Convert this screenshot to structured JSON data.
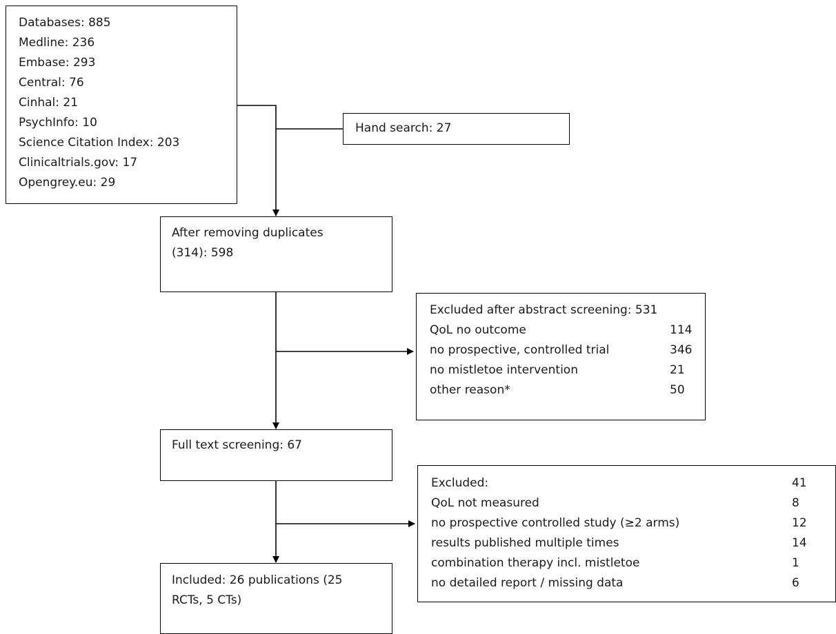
{
  "databases": {
    "lines": [
      "Databases: 885",
      "Medline: 236",
      "Embase: 293",
      "Central: 76",
      "Cinhal: 21",
      "PsychInfo: 10",
      "Science Citation Index: 203",
      "Clinicaltrials.gov: 17",
      "Opengrey.eu: 29"
    ]
  },
  "hand_search": {
    "label": "Hand search: 27"
  },
  "after_duplicates": {
    "line1": "After removing duplicates",
    "line2": "(314):  598"
  },
  "abstract_exclusion": {
    "title": "Excluded after abstract screening: 531",
    "rows": [
      {
        "reason": "QoL no outcome",
        "count": "114"
      },
      {
        "reason": "no prospective, controlled trial",
        "count": "346"
      },
      {
        "reason": "no mistletoe  intervention",
        "count": "21"
      },
      {
        "reason": "other reason*",
        "count": "50"
      }
    ]
  },
  "full_text": {
    "label": "Full text screening: 67"
  },
  "fulltext_exclusion": {
    "rows": [
      {
        "reason": "Excluded:",
        "count": "41"
      },
      {
        "reason": "QoL not measured",
        "count": "8"
      },
      {
        "reason": "no prospective controlled study (≥2 arms)",
        "count": "12"
      },
      {
        "reason": "results published multiple times",
        "count": "14"
      },
      {
        "reason": "combination therapy incl. mistletoe",
        "count": "1"
      },
      {
        "reason": "no detailed report / missing data",
        "count": "6"
      }
    ]
  },
  "included": {
    "line1": "Included: 26 publications (25",
    "line2": "RCTs, 5 CTs)"
  }
}
